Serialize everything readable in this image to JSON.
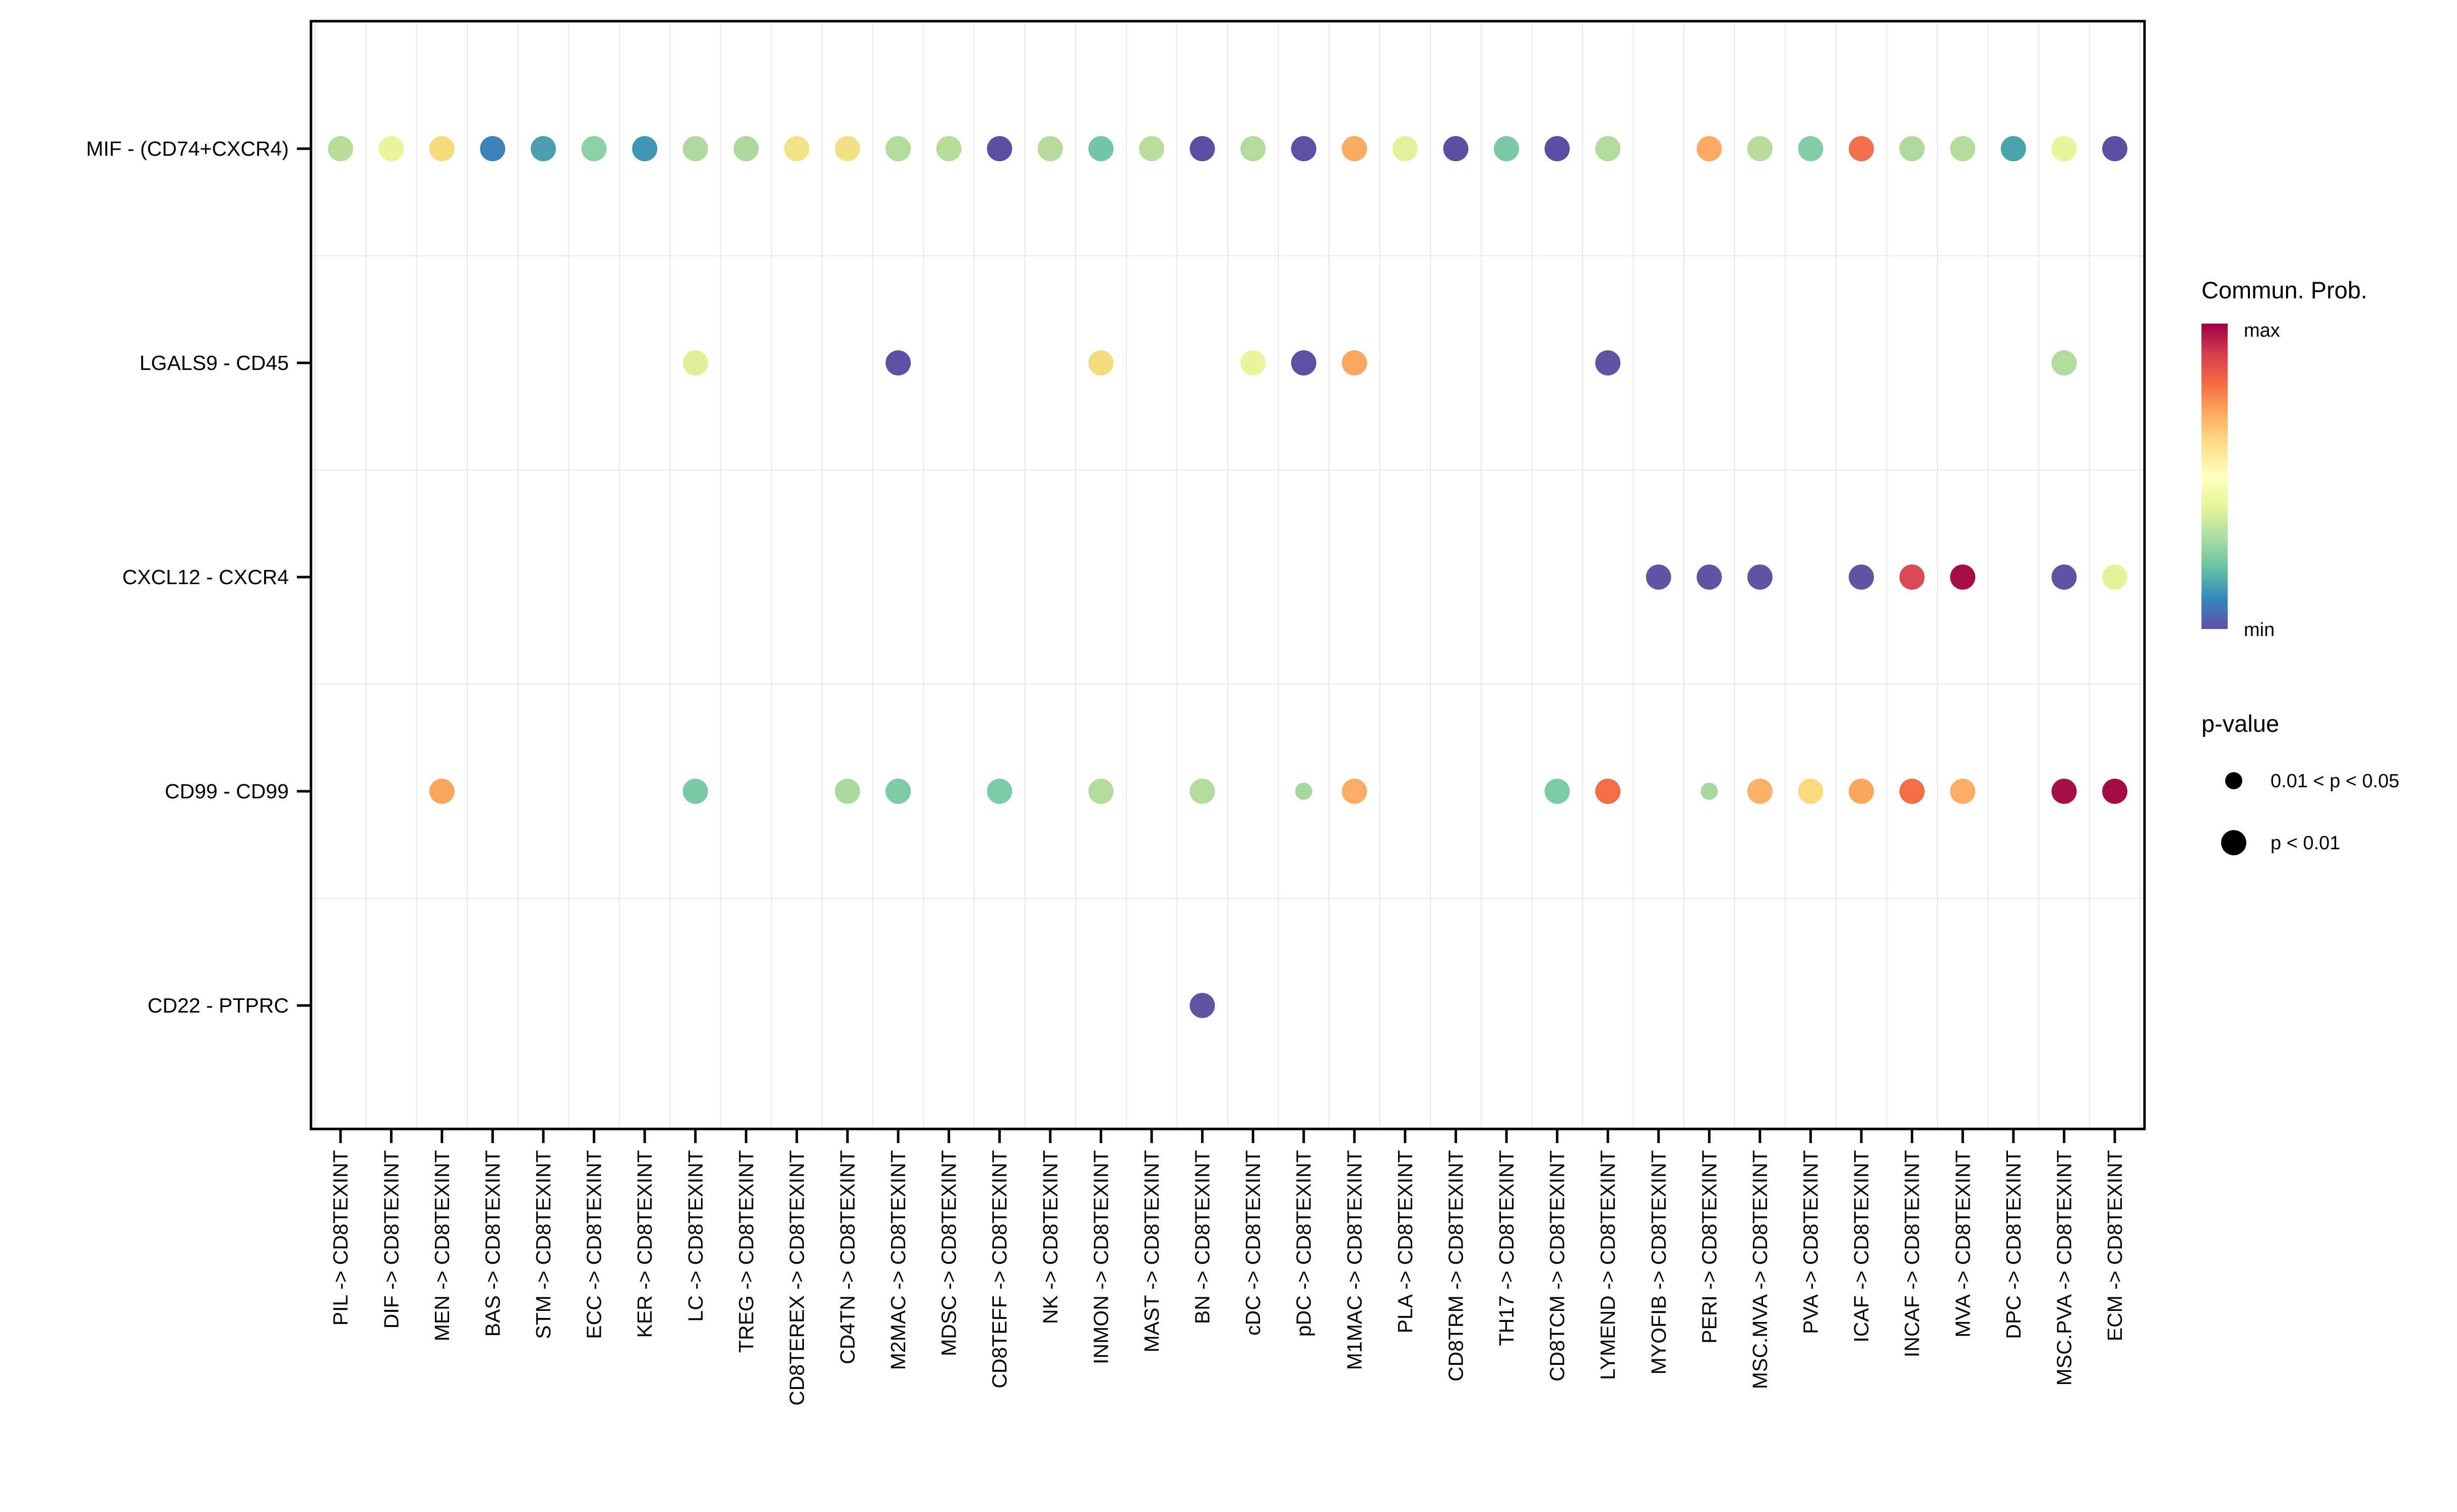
{
  "chart_data": {
    "type": "scatter",
    "subtype": "bubble-dotplot",
    "title": "",
    "xlabel": "",
    "ylabel": "",
    "grid": true,
    "x_categories": [
      "PIL -> CD8TEXINT",
      "DIF -> CD8TEXINT",
      "MEN -> CD8TEXINT",
      "BAS -> CD8TEXINT",
      "STM -> CD8TEXINT",
      "ECC -> CD8TEXINT",
      "KER -> CD8TEXINT",
      "LC -> CD8TEXINT",
      "TREG -> CD8TEXINT",
      "CD8TEREX -> CD8TEXINT",
      "CD4TN -> CD8TEXINT",
      "M2MAC -> CD8TEXINT",
      "MDSC -> CD8TEXINT",
      "CD8TEFF -> CD8TEXINT",
      "NK -> CD8TEXINT",
      "INMON -> CD8TEXINT",
      "MAST -> CD8TEXINT",
      "BN -> CD8TEXINT",
      "cDC -> CD8TEXINT",
      "pDC -> CD8TEXINT",
      "M1MAC -> CD8TEXINT",
      "PLA -> CD8TEXINT",
      "CD8TRM -> CD8TEXINT",
      "TH17 -> CD8TEXINT",
      "CD8TCM -> CD8TEXINT",
      "LYMEND -> CD8TEXINT",
      "MYOFIB -> CD8TEXINT",
      "PERI -> CD8TEXINT",
      "MSC.MVA -> CD8TEXINT",
      "PVA -> CD8TEXINT",
      "ICAF -> CD8TEXINT",
      "INCAF -> CD8TEXINT",
      "MVA -> CD8TEXINT",
      "DPC -> CD8TEXINT",
      "MSC.PVA -> CD8TEXINT",
      "ECM -> CD8TEXINT"
    ],
    "y_categories": [
      "MIF - (CD74+CXCR4)",
      "LGALS9 - CD45",
      "CXCL12 - CXCR4",
      "CD99 - CD99",
      "CD22 - PTPRC"
    ],
    "legend": {
      "color_title": "Commun. Prob.",
      "color_max_label": "max",
      "color_min_label": "min",
      "color_scale_top_to_bottom": [
        "#9E0142",
        "#D53E4F",
        "#F46D43",
        "#FDAE61",
        "#FEE08B",
        "#FFFFBF",
        "#E6F598",
        "#ABDDA4",
        "#66C2A5",
        "#3288BD",
        "#5E4FA2"
      ],
      "size_title": "p-value",
      "size_items": [
        {
          "label": "0.01 < p < 0.05",
          "size": "small"
        },
        {
          "label": "p < 0.01",
          "size": "large"
        }
      ],
      "dot_color": "#000000"
    },
    "points": [
      {
        "row": 0,
        "col": 0,
        "color": "#B7DD9B",
        "size": "large"
      },
      {
        "row": 0,
        "col": 1,
        "color": "#E7F49A",
        "size": "large"
      },
      {
        "row": 0,
        "col": 2,
        "color": "#F4DC7C",
        "size": "large"
      },
      {
        "row": 0,
        "col": 3,
        "color": "#3B82BB",
        "size": "large"
      },
      {
        "row": 0,
        "col": 4,
        "color": "#4A9FAE",
        "size": "large"
      },
      {
        "row": 0,
        "col": 5,
        "color": "#8DD2A4",
        "size": "large"
      },
      {
        "row": 0,
        "col": 6,
        "color": "#3E96B4",
        "size": "large"
      },
      {
        "row": 0,
        "col": 7,
        "color": "#AFDA9D",
        "size": "large"
      },
      {
        "row": 0,
        "col": 8,
        "color": "#ACD99E",
        "size": "large"
      },
      {
        "row": 0,
        "col": 9,
        "color": "#F2E286",
        "size": "large"
      },
      {
        "row": 0,
        "col": 10,
        "color": "#F1E184",
        "size": "large"
      },
      {
        "row": 0,
        "col": 11,
        "color": "#B4DC9B",
        "size": "large"
      },
      {
        "row": 0,
        "col": 12,
        "color": "#B7DD9A",
        "size": "large"
      },
      {
        "row": 0,
        "col": 13,
        "color": "#5B4FA2",
        "size": "large"
      },
      {
        "row": 0,
        "col": 14,
        "color": "#B5DC9A",
        "size": "large"
      },
      {
        "row": 0,
        "col": 15,
        "color": "#72C6A5",
        "size": "large"
      },
      {
        "row": 0,
        "col": 16,
        "color": "#BADF9C",
        "size": "large"
      },
      {
        "row": 0,
        "col": 17,
        "color": "#5A4FA2",
        "size": "large"
      },
      {
        "row": 0,
        "col": 18,
        "color": "#B3DC9C",
        "size": "large"
      },
      {
        "row": 0,
        "col": 19,
        "color": "#5B50A3",
        "size": "large"
      },
      {
        "row": 0,
        "col": 20,
        "color": "#FBAC63",
        "size": "large"
      },
      {
        "row": 0,
        "col": 21,
        "color": "#E2F29B",
        "size": "large"
      },
      {
        "row": 0,
        "col": 22,
        "color": "#5A4FA2",
        "size": "large"
      },
      {
        "row": 0,
        "col": 23,
        "color": "#79C9A5",
        "size": "large"
      },
      {
        "row": 0,
        "col": 24,
        "color": "#5A4FA2",
        "size": "large"
      },
      {
        "row": 0,
        "col": 25,
        "color": "#B2DC9D",
        "size": "large"
      },
      {
        "row": 0,
        "col": 27,
        "color": "#FBAB62",
        "size": "large"
      },
      {
        "row": 0,
        "col": 28,
        "color": "#B7DD9B",
        "size": "large"
      },
      {
        "row": 0,
        "col": 29,
        "color": "#81CDA5",
        "size": "large"
      },
      {
        "row": 0,
        "col": 30,
        "color": "#F3704D",
        "size": "large"
      },
      {
        "row": 0,
        "col": 31,
        "color": "#AEDA9E",
        "size": "large"
      },
      {
        "row": 0,
        "col": 32,
        "color": "#B4DC9B",
        "size": "large"
      },
      {
        "row": 0,
        "col": 33,
        "color": "#4AA2AB",
        "size": "large"
      },
      {
        "row": 0,
        "col": 34,
        "color": "#E6F49A",
        "size": "large"
      },
      {
        "row": 0,
        "col": 35,
        "color": "#5A50A3",
        "size": "large"
      },
      {
        "row": 1,
        "col": 7,
        "color": "#DFF098",
        "size": "large"
      },
      {
        "row": 1,
        "col": 11,
        "color": "#5B50A3",
        "size": "large"
      },
      {
        "row": 1,
        "col": 15,
        "color": "#F2DC7E",
        "size": "large"
      },
      {
        "row": 1,
        "col": 18,
        "color": "#E9F59B",
        "size": "large"
      },
      {
        "row": 1,
        "col": 19,
        "color": "#5B50A3",
        "size": "large"
      },
      {
        "row": 1,
        "col": 20,
        "color": "#FAA85F",
        "size": "large"
      },
      {
        "row": 1,
        "col": 25,
        "color": "#5F55A5",
        "size": "large"
      },
      {
        "row": 1,
        "col": 34,
        "color": "#B0DB9C",
        "size": "large"
      },
      {
        "row": 2,
        "col": 26,
        "color": "#5E55A4",
        "size": "large"
      },
      {
        "row": 2,
        "col": 27,
        "color": "#5E55A4",
        "size": "large"
      },
      {
        "row": 2,
        "col": 28,
        "color": "#5D54A4",
        "size": "large"
      },
      {
        "row": 2,
        "col": 30,
        "color": "#5E55A4",
        "size": "large"
      },
      {
        "row": 2,
        "col": 31,
        "color": "#D94A54",
        "size": "large"
      },
      {
        "row": 2,
        "col": 32,
        "color": "#A30E45",
        "size": "large"
      },
      {
        "row": 2,
        "col": 34,
        "color": "#5D53A4",
        "size": "large"
      },
      {
        "row": 2,
        "col": 35,
        "color": "#E3F399",
        "size": "large"
      },
      {
        "row": 3,
        "col": 2,
        "color": "#FAA75E",
        "size": "large"
      },
      {
        "row": 3,
        "col": 7,
        "color": "#7BC9A4",
        "size": "large"
      },
      {
        "row": 3,
        "col": 10,
        "color": "#ABD89F",
        "size": "large"
      },
      {
        "row": 3,
        "col": 11,
        "color": "#7CCBA4",
        "size": "large"
      },
      {
        "row": 3,
        "col": 13,
        "color": "#7CCBA4",
        "size": "large"
      },
      {
        "row": 3,
        "col": 15,
        "color": "#B2DC9C",
        "size": "large"
      },
      {
        "row": 3,
        "col": 17,
        "color": "#B2DC9C",
        "size": "large"
      },
      {
        "row": 3,
        "col": 19,
        "color": "#A5D79E",
        "size": "small"
      },
      {
        "row": 3,
        "col": 20,
        "color": "#FBAE63",
        "size": "large"
      },
      {
        "row": 3,
        "col": 24,
        "color": "#7CCBA4",
        "size": "large"
      },
      {
        "row": 3,
        "col": 25,
        "color": "#F26D45",
        "size": "large"
      },
      {
        "row": 3,
        "col": 27,
        "color": "#A9D89E",
        "size": "small"
      },
      {
        "row": 3,
        "col": 28,
        "color": "#FCB167",
        "size": "large"
      },
      {
        "row": 3,
        "col": 29,
        "color": "#FBD97F",
        "size": "large"
      },
      {
        "row": 3,
        "col": 30,
        "color": "#FAA75E",
        "size": "large"
      },
      {
        "row": 3,
        "col": 31,
        "color": "#F26D45",
        "size": "large"
      },
      {
        "row": 3,
        "col": 32,
        "color": "#FBAE63",
        "size": "large"
      },
      {
        "row": 3,
        "col": 34,
        "color": "#A50F44",
        "size": "large"
      },
      {
        "row": 3,
        "col": 35,
        "color": "#A30B43",
        "size": "large"
      },
      {
        "row": 4,
        "col": 17,
        "color": "#5F55A5",
        "size": "large"
      }
    ]
  }
}
